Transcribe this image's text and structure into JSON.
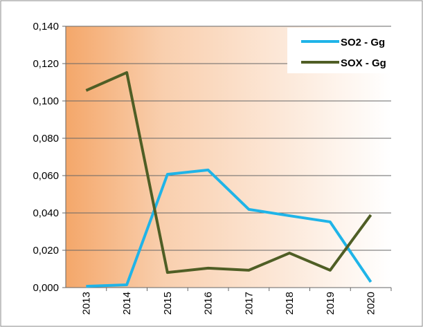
{
  "chart_data": {
    "type": "line",
    "categories": [
      "2013",
      "2014",
      "2015",
      "2016",
      "2017",
      "2018",
      "2019",
      "2020"
    ],
    "series": [
      {
        "name": "SO2 - Gg",
        "color": "#1fb4e8",
        "values": [
          0.0007,
          0.0015,
          0.0607,
          0.063,
          0.0419,
          0.0385,
          0.0352,
          0.003
        ]
      },
      {
        "name": "SOX - Gg",
        "color": "#4f5e25",
        "values": [
          0.1056,
          0.1152,
          0.0081,
          0.0104,
          0.0093,
          0.0185,
          0.0093,
          0.0389
        ]
      }
    ],
    "ylim": [
      0,
      0.14
    ],
    "yticks": [
      {
        "value": 0,
        "label": "0,000"
      },
      {
        "value": 0.02,
        "label": "0,020"
      },
      {
        "value": 0.04,
        "label": "0,040"
      },
      {
        "value": 0.06,
        "label": "0,060"
      },
      {
        "value": 0.08,
        "label": "0,080"
      },
      {
        "value": 0.1,
        "label": "0,100"
      },
      {
        "value": 0.12,
        "label": "0,120"
      },
      {
        "value": 0.14,
        "label": "0,140"
      }
    ],
    "grid": true,
    "legend": "top-right"
  }
}
